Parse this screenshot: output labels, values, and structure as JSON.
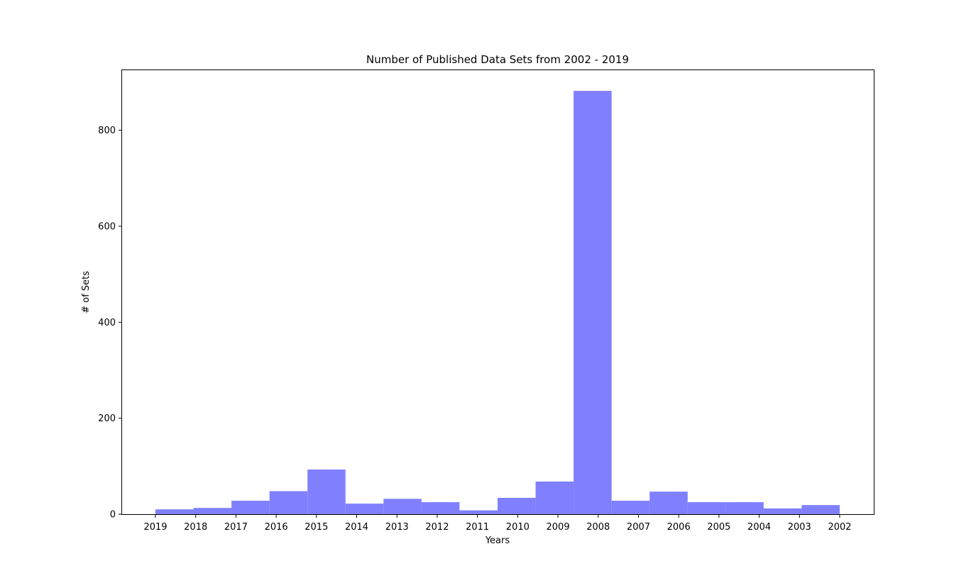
{
  "chart_data": {
    "type": "bar",
    "title": "Number of Published Data Sets from 2002 - 2019",
    "xlabel": "Years",
    "ylabel": "# of Sets",
    "ylim": [
      0,
      925
    ],
    "yticks": [
      0,
      200,
      400,
      600,
      800
    ],
    "xtick_labels": [
      "2019",
      "2018",
      "2017",
      "2016",
      "2015",
      "2014",
      "2013",
      "2012",
      "2011",
      "2010",
      "2009",
      "2008",
      "2007",
      "2006",
      "2005",
      "2004",
      "2003",
      "2002"
    ],
    "bins": 18,
    "values": [
      10,
      13,
      28,
      48,
      93,
      22,
      32,
      25,
      8,
      34,
      68,
      882,
      28,
      47,
      25,
      25,
      12,
      19
    ],
    "bar_color": "#8080ff",
    "grid": false,
    "legend": "none"
  }
}
